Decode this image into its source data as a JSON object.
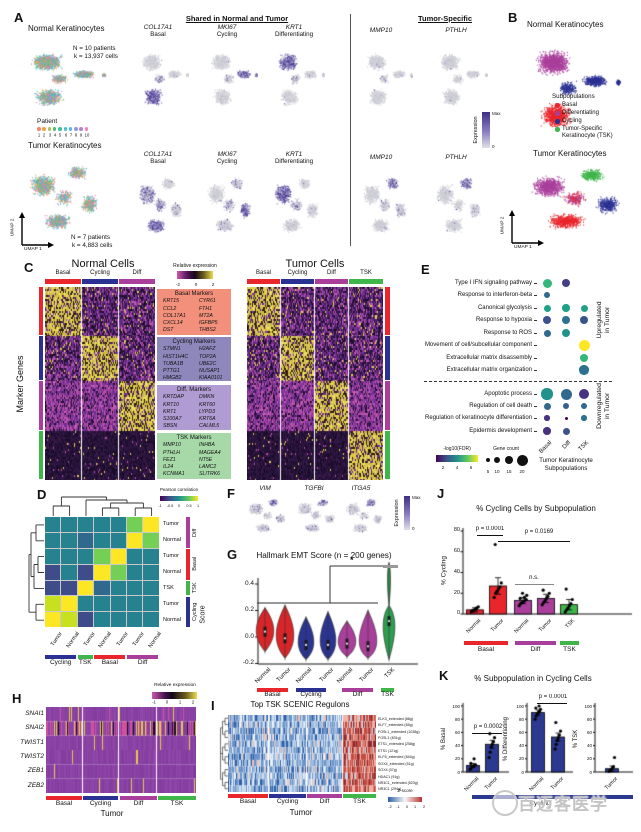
{
  "colors": {
    "basal": "#E8262C",
    "cycling": "#2B3193",
    "diff": "#A93F9B",
    "tsk": "#3FB54A",
    "navy_bar": "#2B3990"
  },
  "panelA": {
    "label": "A",
    "normal_title": "Normal Keratinocytes",
    "normal_stats_1": "N = 10 patients",
    "normal_stats_2": "k = 13,937 cells",
    "patient_legend": {
      "title": "Patient",
      "numbers": [
        "1",
        "2",
        "3",
        "4",
        "5",
        "6",
        "7",
        "8",
        "9",
        "10"
      ],
      "colors": [
        "#F4876E",
        "#F2A13F",
        "#A9C25D",
        "#4DBE6C",
        "#3BBFA0",
        "#41C5C8",
        "#56B7E6",
        "#8F9BDB",
        "#B387C9",
        "#F283BC"
      ]
    },
    "tumor_title": "Tumor Keratinocytes",
    "tumor_stats_1": "N = 7 patients",
    "tumor_stats_2": "k = 4,883 cells",
    "umap_x": "UMAP 1",
    "umap_y": "UMAP 2",
    "shared_header": "Shared in Normal and Tumor",
    "tumor_specific_header": "Tumor-Specific",
    "shared_cols": [
      {
        "gene": "COL17A1",
        "sub": "Basal"
      },
      {
        "gene": "MKI67",
        "sub": "Cycling"
      },
      {
        "gene": "KRT1",
        "sub": "Differentiating"
      }
    ],
    "ts_cols": [
      {
        "gene": "MMP10"
      },
      {
        "gene": "PTHLH"
      }
    ],
    "expr_scale": {
      "label": "Expression",
      "max": "Max",
      "min": "0"
    }
  },
  "panelB": {
    "label": "B",
    "normal_title": "Normal Keratinocytes",
    "tumor_title": "Tumor Keratinocytes",
    "legend": {
      "title": "Subpopulations",
      "items": [
        {
          "label": "Basal",
          "color": "#E8262C"
        },
        {
          "label": "Differentiating",
          "color": "#A93F9B"
        },
        {
          "label": "Cycling",
          "color": "#2B3193"
        },
        {
          "label": "Tumor-Specific",
          "label2": "Keratinocyte (TSK)",
          "color": "#3FB54A"
        }
      ]
    },
    "umap_x": "UMAP 1",
    "umap_y": "UMAP 2"
  },
  "panelC": {
    "label": "C",
    "normal_title": "Normal Cells",
    "tumor_title": "Tumor Cells",
    "ylabel": "Marker Genes",
    "colorbar": {
      "title": "Relative expression",
      "ticks": [
        "-2",
        "0",
        "2"
      ]
    },
    "normal_groups": [
      "Basal",
      "Cycling",
      "Diff"
    ],
    "tumor_groups": [
      "Basal",
      "Cycling",
      "Diff",
      "TSK"
    ],
    "boxes": [
      {
        "title": "Basal Markers",
        "color": "#F2907B",
        "col1": [
          "KRT15",
          "CCL2",
          "COL17A1",
          "CXCL14",
          "DST"
        ],
        "col2": [
          "CYR61",
          "FTH1",
          "MT2A",
          "IGFBP5",
          "THBS2"
        ]
      },
      {
        "title": "Cycling Markers",
        "color": "#8D87BC",
        "col1": [
          "STMN1",
          "HIST1H4C",
          "TUBA1B",
          "PTTG1",
          "HMGB2"
        ],
        "col2": [
          "H2AFZ",
          "TOP2A",
          "UBE2C",
          "NUSAP1",
          "KIAA0101"
        ]
      },
      {
        "title": "Diff. Markers",
        "color": "#B09BD2",
        "col1": [
          "KRTDAP",
          "KRT10",
          "KRT1",
          "S100A7",
          "SBSN"
        ],
        "col2": [
          "DMKN",
          "KRT60",
          "LYPD3",
          "KRT6A",
          "CALML5"
        ]
      },
      {
        "title": "TSK Markers",
        "color": "#A6D9A7",
        "col1": [
          "MMP10",
          "PTHLH",
          "FEZ1",
          "IL24",
          "KCNMA1"
        ],
        "col2": [
          "INHBA",
          "MAGEA4",
          "NT5E",
          "LAMC2",
          "SLITRK6"
        ]
      }
    ]
  },
  "panelD": {
    "label": "D",
    "colorbar": {
      "title": "Pearson correlation",
      "ticks": [
        "-1",
        "-0.5",
        "0",
        "0.5",
        "1"
      ]
    },
    "row_labels": [
      "Tumor",
      "Normal",
      "Tumor",
      "Normal",
      "TSK",
      "Tumor",
      "Normal"
    ],
    "col_labels": [
      "Tumor",
      "Normal",
      "Tumor",
      "Normal",
      "Tumor",
      "Tumor",
      "Normal"
    ],
    "row_groups": [
      {
        "label": "Diff",
        "color": "#A93F9B",
        "n": 2
      },
      {
        "label": "Basal",
        "color": "#E8262C",
        "n": 2
      },
      {
        "label": "TSK",
        "color": "#3FB54A",
        "n": 1
      },
      {
        "label": "Cycling",
        "color": "#2B3193",
        "n": 2
      }
    ],
    "col_groups": [
      {
        "label": "Cycling",
        "color": "#2B3193",
        "n": 2
      },
      {
        "label": "TSK",
        "color": "#3FB54A",
        "n": 1
      },
      {
        "label": "Basal",
        "color": "#E8262C",
        "n": 2
      },
      {
        "label": "Diff",
        "color": "#A93F9B",
        "n": 2
      }
    ],
    "matrix": [
      [
        "T",
        "T",
        "T",
        "T",
        "T",
        "G",
        "Y"
      ],
      [
        "T",
        "T",
        "D",
        "T",
        "T",
        "Y",
        "G"
      ],
      [
        "T",
        "T",
        "T",
        "G",
        "Y",
        "T",
        "T"
      ],
      [
        "B",
        "T",
        "B",
        "Y",
        "G",
        "T",
        "T"
      ],
      [
        "B",
        "B",
        "Y",
        "D",
        "T",
        "T",
        "T"
      ],
      [
        "YG",
        "Y",
        "T",
        "T",
        "T",
        "T",
        "T"
      ],
      [
        "Y",
        "YG",
        "B",
        "T",
        "T",
        "T",
        "T"
      ]
    ],
    "palette": {
      "T": "#26828E",
      "D": "#31688E",
      "B": "#3E4C8A",
      "G": "#73D055",
      "Y": "#FDE725",
      "YG": "#C7E020"
    }
  },
  "panelE": {
    "label": "E",
    "up_rows": [
      "Type I IFN signaling pathway",
      "Response to interferon-beta",
      "Canonical glycolysis",
      "Response to hypoxia",
      "Response to ROS",
      "Movement of cell/subcellular component",
      "Extracellular matrix disassembly",
      "Extracellular matrix organization"
    ],
    "down_rows": [
      "Apoptotic process",
      "Regulation of cell death",
      "Regulation of keratinocyte differentiation",
      "Epidermis development"
    ],
    "up_label_1": "Upregulated",
    "up_label_2": "in Tumor",
    "down_label_1": "Downregulated",
    "down_label_2": "in Tumor",
    "x_labels": [
      "Basal",
      "Diff",
      "TSK"
    ],
    "x_axis_1": "Tumor Keratinocyte",
    "x_axis_2": "Subpopulations",
    "legend": {
      "fdr_title": "-log10(FDR)",
      "fdr_ticks": [
        "2",
        "4",
        "6"
      ],
      "count_title": "Gene count",
      "count_ticks": [
        "5",
        "10",
        "15",
        "20"
      ]
    },
    "dots": [
      [
        0,
        0,
        "#35B779",
        9
      ],
      [
        0,
        1,
        "#433E85",
        8
      ],
      [
        1,
        0,
        "#31688E",
        6.5
      ],
      [
        2,
        0,
        "#1FA187",
        7
      ],
      [
        2,
        1,
        "#1FA187",
        7.5
      ],
      [
        2,
        2,
        "#1FA187",
        7
      ],
      [
        3,
        0,
        "#3B528B",
        8.5
      ],
      [
        3,
        1,
        "#2C728E",
        8.5
      ],
      [
        3,
        2,
        "#3B528B",
        8
      ],
      [
        4,
        0,
        "#31688E",
        7
      ],
      [
        4,
        1,
        "#21918C",
        8
      ],
      [
        5,
        2,
        "#FDE725",
        11
      ],
      [
        6,
        2,
        "#35B779",
        8.5
      ],
      [
        7,
        2,
        "#2C728E",
        9.5
      ],
      [
        8,
        0,
        "#21918C",
        11.5
      ],
      [
        8,
        1,
        "#31688E",
        11
      ],
      [
        8,
        2,
        "#46327E",
        10.5
      ],
      [
        9,
        0,
        "#31688E",
        7
      ],
      [
        9,
        1,
        "#355F8D",
        6
      ],
      [
        9,
        2,
        "#31688E",
        6
      ],
      [
        10,
        0,
        "#46327E",
        5.5
      ],
      [
        10,
        1,
        "#440154",
        3
      ],
      [
        10,
        2,
        "#2C728E",
        5.5
      ],
      [
        11,
        0,
        "#46327E",
        7.5
      ],
      [
        11,
        1,
        "#3B528B",
        7
      ]
    ]
  },
  "panelF": {
    "label": "F",
    "genes": [
      "VIM",
      "TGFBI",
      "ITGA5"
    ],
    "expr_scale": {
      "label": "Expression",
      "max": "Max",
      "min": "0"
    }
  },
  "panelG": {
    "label": "G",
    "title": "Hallmark EMT Score (n = 200 genes)",
    "ylabel": "Score",
    "yticks": [
      "0.4",
      "0.2",
      "0.0",
      "-0.2"
    ],
    "sig": "*",
    "x_labels": [
      "Normal",
      "Tumor",
      "Normal",
      "Tumor",
      "Normal",
      "Tumor",
      "TSK"
    ],
    "groups": [
      {
        "label": "Basal",
        "color": "#E8262C"
      },
      {
        "label": "Cycling",
        "color": "#2B3193"
      },
      {
        "label": "Diff",
        "color": "#A93F9B"
      },
      {
        "label": "TSK",
        "color": "#3FB54A"
      }
    ],
    "violins": [
      {
        "color": "#D92528",
        "med": 0.04,
        "lo": -0.11,
        "hi": 0.22,
        "w": 9
      },
      {
        "color": "#D92528",
        "med": -0.01,
        "lo": -0.16,
        "hi": 0.24,
        "w": 9
      },
      {
        "color": "#2B3490",
        "med": -0.06,
        "lo": -0.17,
        "hi": 0.15,
        "w": 8
      },
      {
        "color": "#2B3490",
        "med": -0.06,
        "lo": -0.17,
        "hi": 0.19,
        "w": 8
      },
      {
        "color": "#A93F9B",
        "med": -0.05,
        "lo": -0.15,
        "hi": 0.12,
        "w": 9
      },
      {
        "color": "#A93F9B",
        "med": -0.07,
        "lo": -0.16,
        "hi": 0.2,
        "w": 9
      },
      {
        "color": "#2E9E4F",
        "med": 0.12,
        "lo": -0.17,
        "hi": 0.56,
        "w": 6,
        "tsk": true
      }
    ]
  },
  "panelH": {
    "label": "H",
    "genes": [
      "SNAI1",
      "SNAI2",
      "TWIST1",
      "TWIST2",
      "ZEB1",
      "ZEB2"
    ],
    "colorbar": {
      "title": "Relative expression",
      "ticks": [
        "-1",
        "0",
        "1",
        "2"
      ]
    },
    "groups": [
      "Basal",
      "Cycling",
      "Diff",
      "TSK"
    ],
    "xlabel": "Tumor"
  },
  "panelI": {
    "label": "I",
    "title": "Top TSK SCENIC Regulons",
    "rows": [
      "ELK3_extended (88g)",
      "KLF7_extended (65g)",
      "FOSL1_extended (1038g)",
      "FOSL1 (831g)",
      "ETS1_extended (258g)",
      "ETS1 (121g)",
      "KLF6_extended (844g)",
      "SOX4_extended (51g)",
      "SOX4 (37g)",
      "HDAC1 (91g)",
      "NR3C1_extended (523g)",
      "NR3C1 (294g)"
    ],
    "groups": [
      "Basal",
      "Cycling",
      "Diff",
      "TSK"
    ],
    "xlabel": "Tumor",
    "colorbar": {
      "title": "Z-score",
      "ticks": [
        "-2",
        "-1",
        "0",
        "1",
        "2"
      ]
    }
  },
  "panelJ": {
    "label": "J",
    "title": "% Cycling Cells by Subpopulation",
    "ylabel": "% Cycling",
    "yticks": [
      "0",
      "20",
      "40",
      "60",
      "80"
    ],
    "x_labels": [
      "Normal",
      "Tumor",
      "Normal",
      "Tumor",
      "TSK"
    ],
    "values": [
      4,
      27,
      13,
      15,
      9
    ],
    "errors": [
      2,
      8,
      3,
      4,
      5
    ],
    "bar_colors": [
      "#E8262C",
      "#E8262C",
      "#A93F9B",
      "#A93F9B",
      "#3FB54A"
    ],
    "dots": [
      [
        2,
        3,
        4,
        5,
        6,
        7,
        3,
        5
      ],
      [
        16,
        20,
        22,
        24,
        26,
        30,
        67
      ],
      [
        8,
        10,
        11,
        12,
        13,
        14,
        15,
        16,
        18,
        20
      ],
      [
        9,
        11,
        13,
        15,
        17,
        20,
        23
      ],
      [
        2,
        4,
        6,
        8,
        10,
        14,
        24
      ]
    ],
    "p1": "p = 0.0001",
    "p2": "p = 0.0169",
    "ns": "n.s.",
    "groups": [
      {
        "label": "Basal",
        "color": "#E8262C"
      },
      {
        "label": "Diff",
        "color": "#A93F9B"
      },
      {
        "label": "TSK",
        "color": "#3FB54A"
      }
    ]
  },
  "panelK": {
    "label": "K",
    "title": "% Subpopulation in Cycling Cells",
    "yticks": [
      "0",
      "20",
      "40",
      "60",
      "80",
      "100"
    ],
    "bar_color": "#2B3990",
    "charts": [
      {
        "ylabel": "% Basal",
        "p": "p = 0.0002",
        "x_labels": [
          "Normal",
          "Tumor"
        ],
        "values": [
          10,
          42
        ],
        "errors": [
          3,
          6
        ],
        "dots": [
          [
            4,
            6,
            8,
            9,
            10,
            11,
            13,
            20
          ],
          [
            22,
            30,
            38,
            42,
            46,
            52,
            58
          ]
        ]
      },
      {
        "ylabel": "% Differentiating",
        "p": "p = 0.0001",
        "x_labels": [
          "Normal",
          "Tumor"
        ],
        "values": [
          90,
          53
        ],
        "errors": [
          4,
          6
        ],
        "dots": [
          [
            80,
            85,
            88,
            90,
            92,
            95,
            97,
            100
          ],
          [
            35,
            42,
            48,
            52,
            56,
            62,
            75
          ]
        ]
      },
      {
        "ylabel": "% TSK",
        "x_labels": [
          "Tumor"
        ],
        "values": [
          5
        ],
        "errors": [
          4
        ],
        "dots": [
          [
            1,
            2,
            4,
            6,
            8,
            22
          ]
        ]
      }
    ],
    "group_label": "Cycling"
  },
  "watermark": {
    "text": "百迈客医学"
  }
}
